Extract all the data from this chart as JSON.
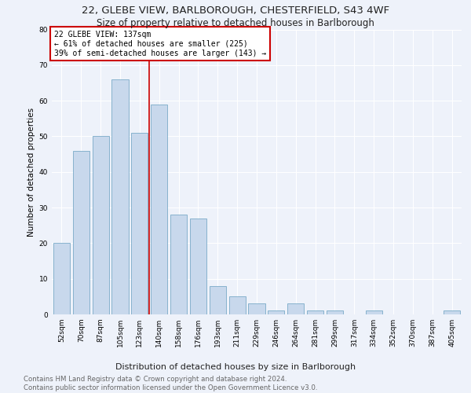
{
  "title1": "22, GLEBE VIEW, BARLBOROUGH, CHESTERFIELD, S43 4WF",
  "title2": "Size of property relative to detached houses in Barlborough",
  "xlabel": "Distribution of detached houses by size in Barlborough",
  "ylabel": "Number of detached properties",
  "categories": [
    "52sqm",
    "70sqm",
    "87sqm",
    "105sqm",
    "123sqm",
    "140sqm",
    "158sqm",
    "176sqm",
    "193sqm",
    "211sqm",
    "229sqm",
    "246sqm",
    "264sqm",
    "281sqm",
    "299sqm",
    "317sqm",
    "334sqm",
    "352sqm",
    "370sqm",
    "387sqm",
    "405sqm"
  ],
  "values": [
    20,
    46,
    50,
    66,
    51,
    59,
    28,
    27,
    8,
    5,
    3,
    1,
    3,
    1,
    1,
    0,
    1,
    0,
    0,
    0,
    1
  ],
  "bar_color": "#c8d8ec",
  "bar_edge_color": "#7aaac8",
  "property_line_color": "#cc0000",
  "annotation_box_color": "#cc0000",
  "ylim": [
    0,
    80
  ],
  "yticks": [
    0,
    10,
    20,
    30,
    40,
    50,
    60,
    70,
    80
  ],
  "footer_text": "Contains HM Land Registry data © Crown copyright and database right 2024.\nContains public sector information licensed under the Open Government Licence v3.0.",
  "background_color": "#eef2fa",
  "grid_color": "#ffffff",
  "title1_fontsize": 9.5,
  "title2_fontsize": 8.5,
  "xlabel_fontsize": 8,
  "ylabel_fontsize": 7.5,
  "tick_fontsize": 6.5,
  "annotation_fontsize": 7,
  "footer_fontsize": 6.2,
  "annotation_text_line1": "22 GLEBE VIEW: 137sqm",
  "annotation_text_line2": "← 61% of detached houses are smaller (225)",
  "annotation_text_line3": "39% of semi-detached houses are larger (143) →"
}
